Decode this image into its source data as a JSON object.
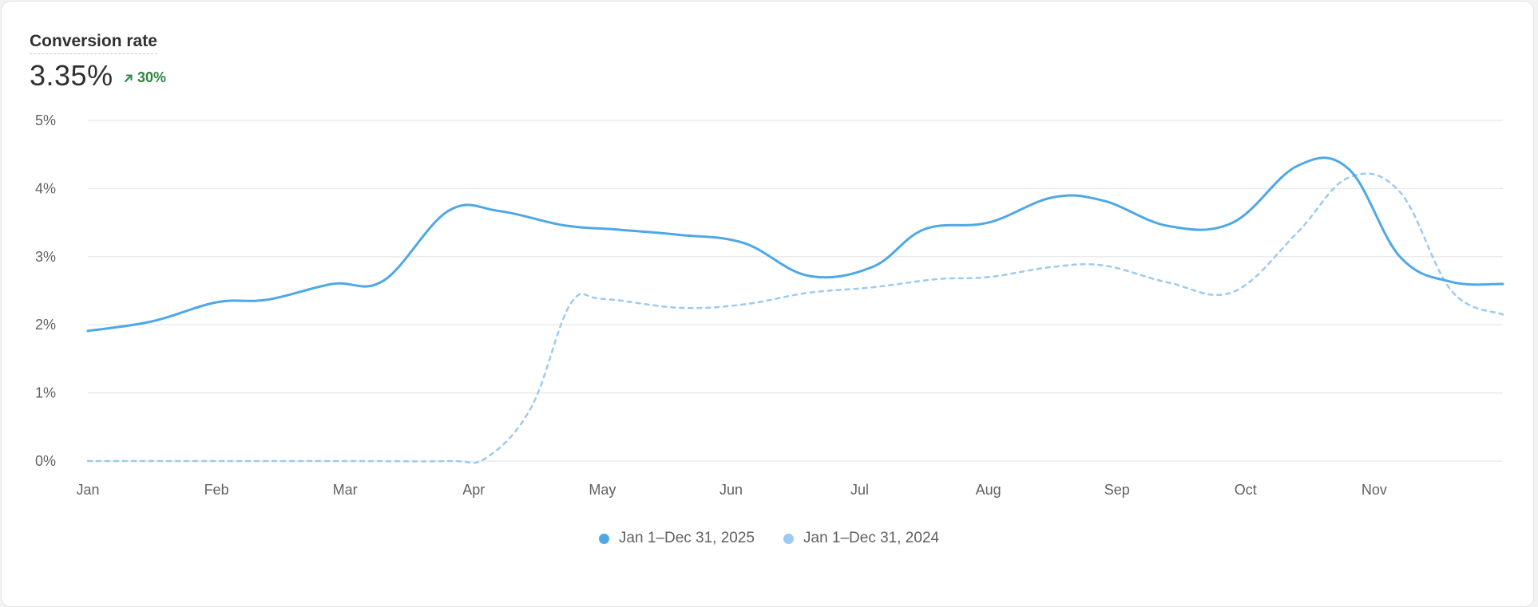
{
  "card": {
    "title": "Conversion rate",
    "value": "3.35%",
    "change": "30%",
    "change_icon": "arrow-up-right-icon",
    "change_color": "#2e8540"
  },
  "colors": {
    "current": "#4ea8e6",
    "previous": "#9ccaf0",
    "grid": "#ebebeb",
    "axis_text": "#616161"
  },
  "legend": [
    {
      "label": "Jan 1–Dec 31, 2025",
      "color": "#4ea8e6"
    },
    {
      "label": "Jan 1–Dec 31, 2024",
      "color": "#9ccaf0"
    }
  ],
  "chart_data": {
    "type": "line",
    "title": "Conversion rate",
    "xlabel": "",
    "ylabel": "",
    "x_ticks": [
      "Jan",
      "Feb",
      "Mar",
      "Apr",
      "May",
      "Jun",
      "Jul",
      "Aug",
      "Sep",
      "Oct",
      "Nov"
    ],
    "y_ticks": [
      "0%",
      "1%",
      "2%",
      "3%",
      "4%",
      "5%"
    ],
    "ylim": [
      0,
      5
    ],
    "xlim": [
      0,
      11
    ],
    "grid": true,
    "legend_position": "bottom-center",
    "series": [
      {
        "name": "Jan 1–Dec 31, 2025",
        "style": "solid",
        "x": [
          0,
          0.5,
          1,
          1.4,
          1.9,
          2.3,
          2.8,
          3.2,
          3.7,
          4.1,
          4.6,
          5.1,
          5.6,
          6.1,
          6.5,
          7.0,
          7.5,
          7.9,
          8.4,
          8.9,
          9.4,
          9.8,
          10.2,
          10.6,
          11.0
        ],
        "values": [
          1.91,
          2.05,
          2.33,
          2.37,
          2.6,
          2.65,
          3.67,
          3.67,
          3.46,
          3.4,
          3.32,
          3.2,
          2.72,
          2.85,
          3.4,
          3.5,
          3.87,
          3.82,
          3.45,
          3.5,
          4.33,
          4.29,
          3.0,
          2.63,
          2.6
        ]
      },
      {
        "name": "Jan 1–Dec 31, 2024",
        "style": "dashed",
        "x": [
          0,
          1,
          2,
          2.8,
          3.1,
          3.45,
          3.75,
          4.0,
          4.6,
          5.1,
          5.6,
          6.1,
          6.6,
          7.0,
          7.5,
          7.9,
          8.4,
          8.9,
          9.4,
          9.8,
          10.2,
          10.6,
          11.0
        ],
        "values": [
          0,
          0,
          0,
          0,
          0.05,
          0.8,
          2.3,
          2.38,
          2.25,
          2.3,
          2.47,
          2.55,
          2.67,
          2.7,
          2.85,
          2.87,
          2.62,
          2.48,
          3.35,
          4.16,
          3.95,
          2.5,
          2.15
        ]
      }
    ]
  }
}
